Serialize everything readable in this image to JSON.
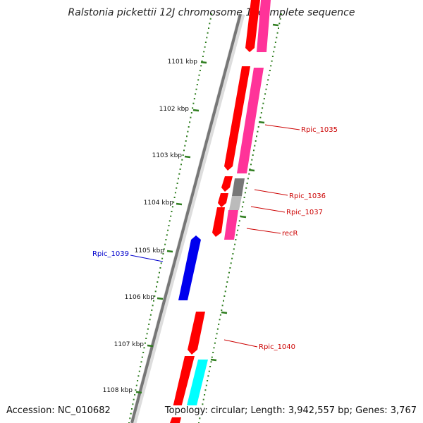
{
  "title": "Ralstonia pickettii 12J chromosome 1, complete sequence",
  "footer": {
    "accession": "Accession: NC_010682",
    "summary": "Topology: circular; Length: 3,942,557 bp; Genes: 3,767"
  },
  "ticks": [
    "1101 kbp",
    "1102 kbp",
    "1103 kbp",
    "1104 kbp",
    "1105 kbp",
    "1106 kbp",
    "1107 kbp",
    "1108 kbp"
  ],
  "gene_labels": [
    "Rpic_1035",
    "Rpic_1036",
    "Rpic_1037",
    "recR",
    "Rpic_1039",
    "Rpic_1040"
  ],
  "colors": {
    "backbone": "#777777",
    "tick": "#2e7d1e",
    "forward_gene": "#ff0000",
    "forward_gene_label": "#cc0000",
    "reverse_gene": "#0000ee",
    "reverse_gene_label": "#0000cc",
    "cds_pink": "#ff3399",
    "cds_gray": "#777777",
    "cds_lightgray": "#bbbbbb",
    "cds_cyan": "#00ffff"
  }
}
